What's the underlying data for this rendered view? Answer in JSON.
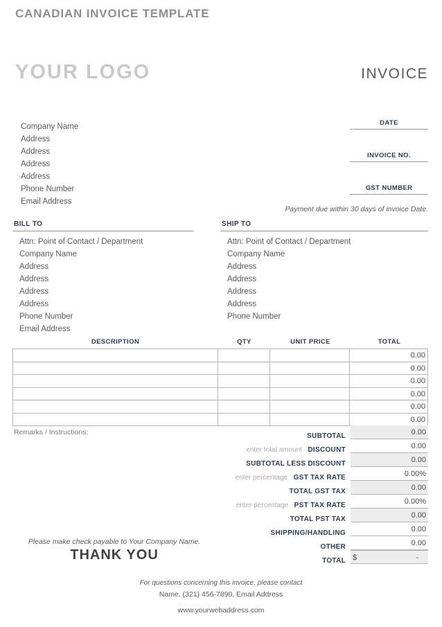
{
  "header": {
    "template_title": "CANADIAN INVOICE TEMPLATE",
    "logo_placeholder": "YOUR LOGO",
    "doc_title": "INVOICE"
  },
  "company": {
    "lines": [
      "Company Name",
      "Address",
      "Address",
      "Address",
      "Address",
      "Phone Number",
      "Email Address"
    ]
  },
  "meta_fields": [
    {
      "label": "DATE",
      "value": ""
    },
    {
      "label": "INVOICE NO.",
      "value": ""
    },
    {
      "label": "GST NUMBER",
      "value": ""
    }
  ],
  "payment_terms": "Payment due within 30 days of invoice Date.",
  "bill_to": {
    "heading": "BILL TO",
    "lines": [
      "Attn: Point of Contact / Department",
      "Company Name",
      "Address",
      "Address",
      "Address",
      "Address",
      "Phone Number",
      "Email Address"
    ]
  },
  "ship_to": {
    "heading": "SHIP TO",
    "lines": [
      "Attn: Point of Contact / Department",
      "Company Name",
      "Address",
      "Address",
      "Address",
      "Address",
      "Phone Number"
    ]
  },
  "items_table": {
    "headers": [
      "DESCRIPTION",
      "QTY",
      "UNIT PRICE",
      "TOTAL"
    ],
    "rows": [
      {
        "description": "",
        "qty": "",
        "unit_price": "",
        "total": "0.00"
      },
      {
        "description": "",
        "qty": "",
        "unit_price": "",
        "total": "0.00"
      },
      {
        "description": "",
        "qty": "",
        "unit_price": "",
        "total": "0.00"
      },
      {
        "description": "",
        "qty": "",
        "unit_price": "",
        "total": "0.00"
      },
      {
        "description": "",
        "qty": "",
        "unit_price": "",
        "total": "0.00"
      },
      {
        "description": "",
        "qty": "",
        "unit_price": "",
        "total": "0.00"
      }
    ]
  },
  "remarks_label": "Remarks / Instructions:",
  "totals": [
    {
      "prefix": "",
      "label": "SUBTOTAL",
      "value": "0.00"
    },
    {
      "prefix": "enter total amount",
      "label": "DISCOUNT",
      "value": "0.00"
    },
    {
      "prefix": "",
      "label": "SUBTOTAL LESS DISCOUNT",
      "value": "0.00"
    },
    {
      "prefix": "enter percentage",
      "label": "GST TAX RATE",
      "value": "0.00%"
    },
    {
      "prefix": "",
      "label": "TOTAL GST TAX",
      "value": "0.00"
    },
    {
      "prefix": "enter percentage",
      "label": "PST TAX RATE",
      "value": "0.00%"
    },
    {
      "prefix": "",
      "label": "TOTAL PST TAX",
      "value": "0.00"
    },
    {
      "prefix": "",
      "label": "SHIPPING/HANDLING",
      "value": "0.00"
    },
    {
      "prefix": "",
      "label": "OTHER",
      "value": "0.00"
    },
    {
      "prefix": "",
      "label": "TOTAL",
      "currency": "$",
      "value": "-"
    }
  ],
  "check_note": "Please make check payable to Your Company Name.",
  "thank_you": "THANK YOU",
  "footer": {
    "line1": "For questions concerning this invoice, please contact",
    "line2": "Name, (321) 456-7890, Email Address",
    "line3": "www.yourwebaddress.com"
  },
  "colors": {
    "heading_navy": "#2d3c55",
    "body_gray": "#595959",
    "muted_gray": "#a9a9a9",
    "shaded_cell": "#ededed",
    "border_gray": "#b5b5b5"
  }
}
